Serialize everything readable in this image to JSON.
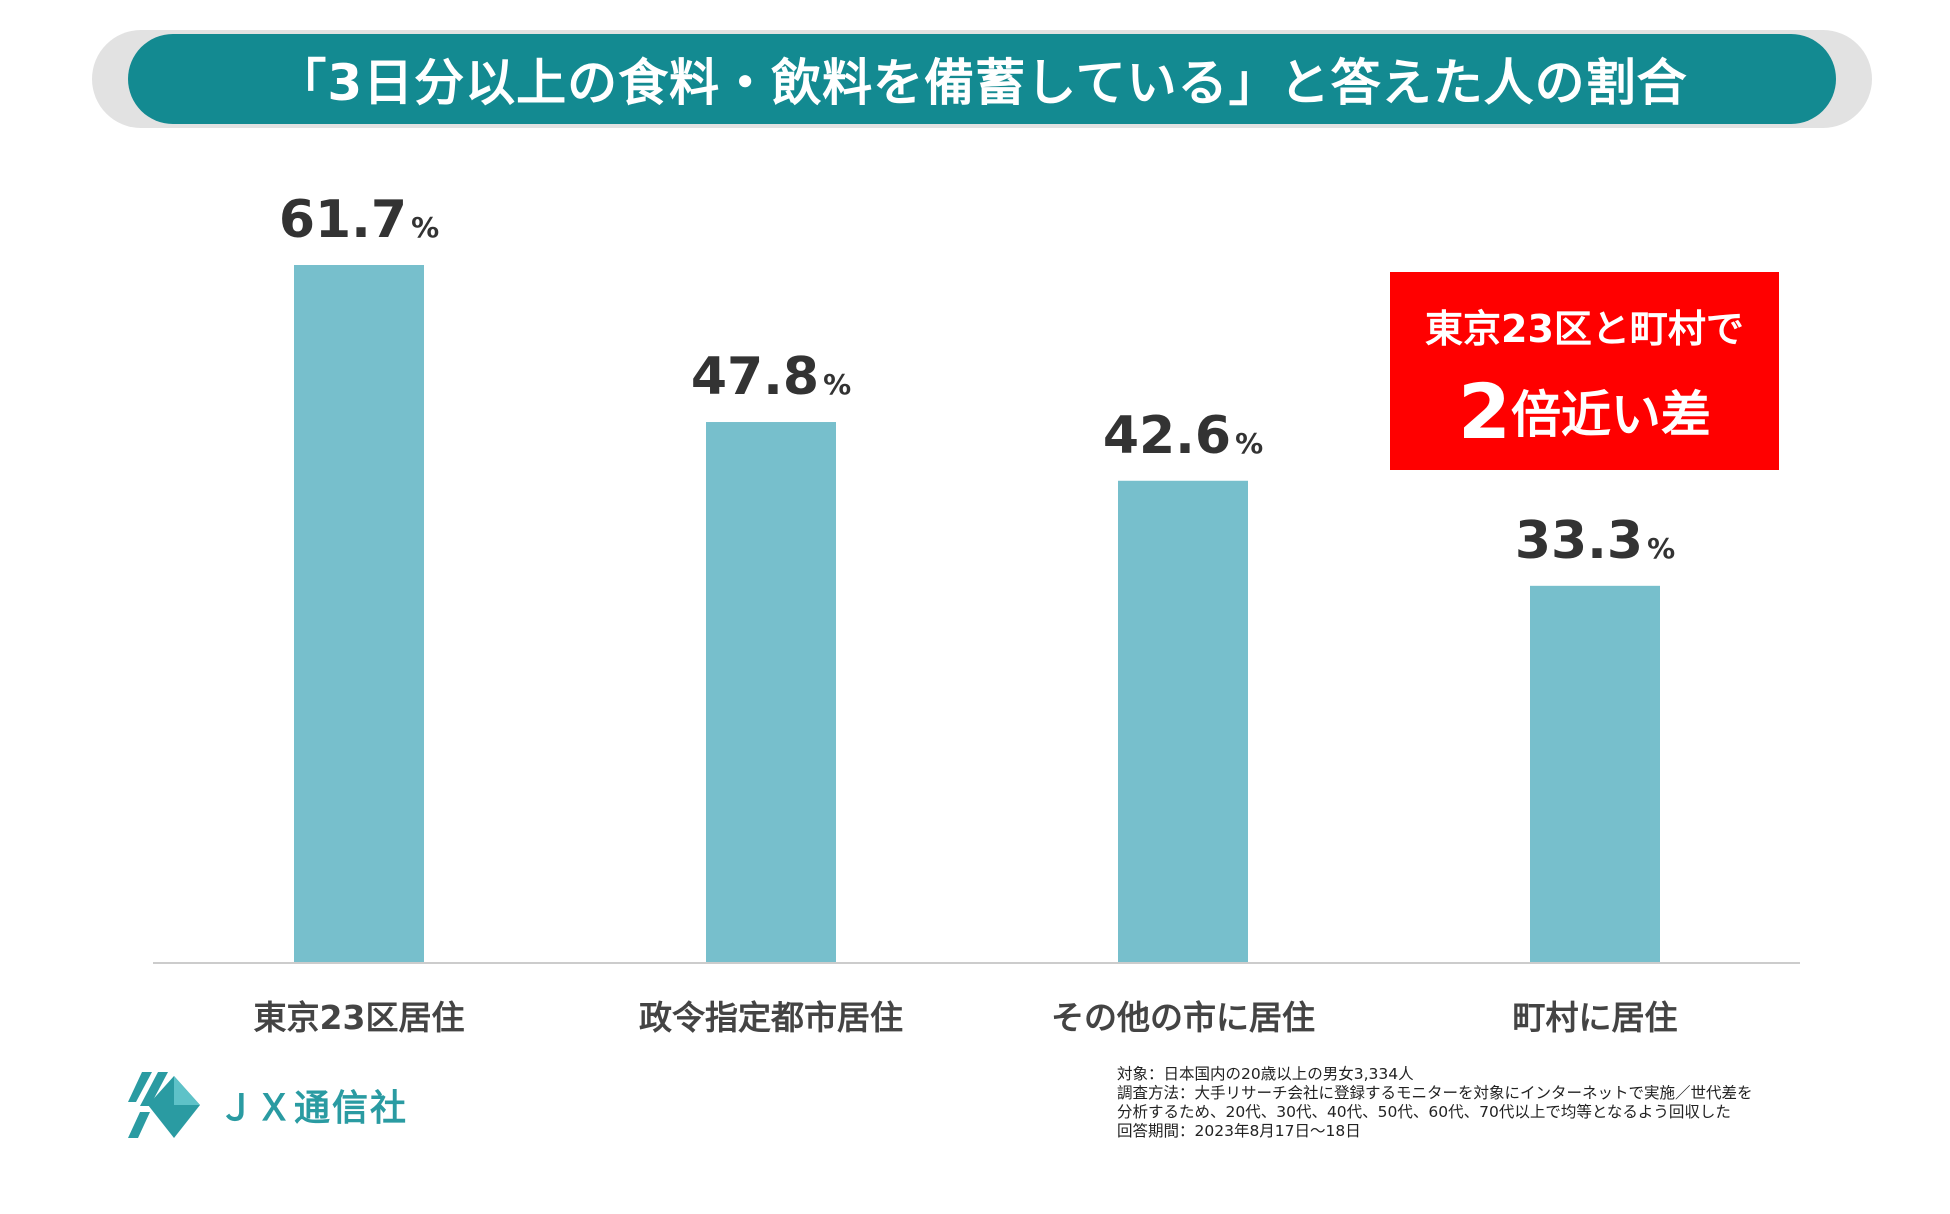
{
  "header": {
    "title": "「3日分以上の食料・飲料を備蓄している」と答えた人の割合"
  },
  "chart_data": {
    "type": "bar",
    "title": "「3日分以上の食料・飲料を備蓄している」と答えた人の割合",
    "categories": [
      "東京23区居住",
      "政令指定都市居住",
      "その他の市に居住",
      "町村に居住"
    ],
    "values": [
      61.7,
      47.8,
      42.6,
      33.3
    ],
    "value_labels": [
      "61.7",
      "47.8",
      "42.6",
      "33.3"
    ],
    "unit": "%",
    "ylim": [
      0,
      70
    ],
    "grid": false,
    "xlabel": "",
    "ylabel": ""
  },
  "callout": {
    "line1": "東京23区と町村で",
    "big": "2",
    "rest": "倍近い差"
  },
  "logo": {
    "text": "ＪＸ通信社"
  },
  "notes": {
    "line1": "対象：日本国内の20歳以上の男女3,334人",
    "line2": "調査方法：大手リサーチ会社に登録するモニターを対象にインターネットで実施／世代差を",
    "line3": "分析するため、20代、30代、40代、50代、60代、70代以上で均等となるよう回収した",
    "line4": "回答期間：2023年8月17日〜18日"
  },
  "colors": {
    "title_bg": "#138a91",
    "bar": "#77bfcc",
    "callout_bg": "#ff0000",
    "axis": "#cccccc",
    "text": "#333333"
  }
}
